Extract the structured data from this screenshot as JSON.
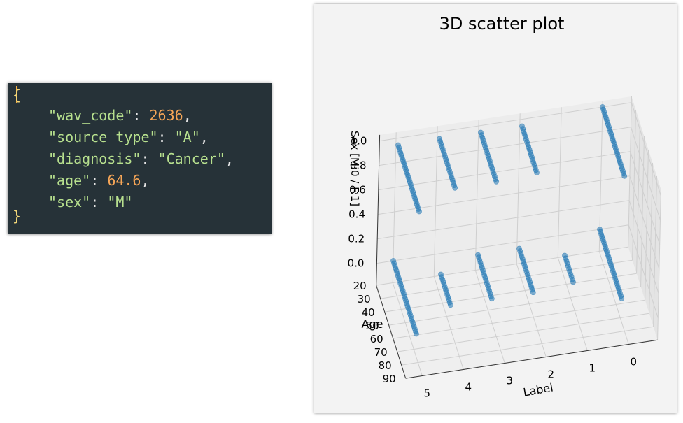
{
  "json_sample": {
    "open_brace": "{",
    "close_brace": "}",
    "lines": [
      {
        "key": "\"wav_code\"",
        "value": "2636",
        "type": "number",
        "comma": ","
      },
      {
        "key": "\"source_type\"",
        "value": "\"A\"",
        "type": "string",
        "comma": ","
      },
      {
        "key": "\"diagnosis\"",
        "value": "\"Cancer\"",
        "type": "string",
        "comma": ","
      },
      {
        "key": "\"age\"",
        "value": "64.6",
        "type": "number",
        "comma": ","
      },
      {
        "key": "\"sex\"",
        "value": "\"M\"",
        "type": "string",
        "comma": ""
      }
    ]
  },
  "chart_data": {
    "type": "scatter",
    "projection": "3d",
    "title": "3D scatter plot",
    "xlabel": "Label",
    "ylabel": "Age",
    "zlabel": "Sex [M:0 / F:1]",
    "xticks": [
      "0",
      "1",
      "2",
      "3",
      "4",
      "5"
    ],
    "yticks": [
      "20",
      "30",
      "40",
      "50",
      "60",
      "70",
      "80",
      "90"
    ],
    "zticks": [
      "0.0",
      "0.2",
      "0.4",
      "0.6",
      "0.8",
      "1.0"
    ],
    "xlim": [
      0,
      5
    ],
    "ylim": [
      20,
      90
    ],
    "zlim": [
      0,
      1
    ],
    "grid": true,
    "series": [
      {
        "color": "#1f77b4",
        "groups": [
          {
            "x": 0,
            "z": 1,
            "age": [
              20,
              72
            ]
          },
          {
            "x": 0,
            "z": 0,
            "age": [
              20,
              72
            ]
          },
          {
            "x": 1,
            "z": 0,
            "age": [
              35,
              55
            ]
          },
          {
            "x": 2,
            "z": 1,
            "age": [
              25,
              60
            ]
          },
          {
            "x": 2,
            "z": 0,
            "age": [
              25,
              58
            ]
          },
          {
            "x": 3,
            "z": 1,
            "age": [
              25,
              62
            ]
          },
          {
            "x": 3,
            "z": 0,
            "age": [
              25,
              58
            ]
          },
          {
            "x": 4,
            "z": 1,
            "age": [
              25,
              62
            ]
          },
          {
            "x": 4,
            "z": 0,
            "age": [
              35,
              58
            ]
          },
          {
            "x": 5,
            "z": 1,
            "age": [
              25,
              75
            ]
          },
          {
            "x": 5,
            "z": 0,
            "age": [
              20,
              75
            ]
          }
        ]
      }
    ]
  }
}
